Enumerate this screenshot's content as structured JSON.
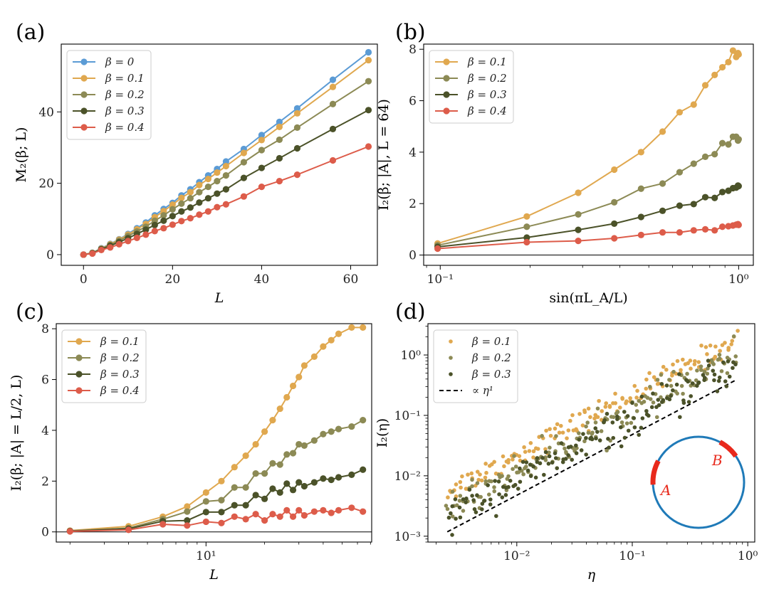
{
  "chart_data": [
    {
      "type": "line",
      "panel_label": "(a)",
      "xlabel": "L",
      "ylabel": "M₂(β; L)",
      "xscale": "linear",
      "yscale": "linear",
      "xlim": [
        -5,
        66
      ],
      "ylim": [
        -3,
        59
      ],
      "xticks": [
        0,
        20,
        40,
        60
      ],
      "xtick_labels": [
        "0",
        "20",
        "40",
        "60"
      ],
      "yticks": [
        0,
        20,
        40
      ],
      "ytick_labels": [
        "0",
        "20",
        "40"
      ],
      "legend_position": "top-left",
      "series": [
        {
          "name": "β = 0",
          "color": "#5b9bd5",
          "x": [
            0,
            2,
            4,
            6,
            8,
            10,
            12,
            14,
            16,
            18,
            20,
            22,
            24,
            26,
            28,
            30,
            32,
            36,
            40,
            44,
            48,
            56,
            64
          ],
          "y": [
            0,
            0.5,
            1.8,
            3.0,
            4.3,
            5.8,
            7.4,
            9.0,
            11.0,
            12.8,
            14.5,
            16.6,
            18.3,
            20.3,
            22.2,
            24.0,
            26.1,
            29.6,
            33.5,
            37.2,
            41.0,
            49.0,
            56.7
          ]
        },
        {
          "name": "β = 0.1",
          "color": "#e0a84f",
          "x": [
            0,
            2,
            4,
            6,
            8,
            10,
            12,
            14,
            16,
            18,
            20,
            22,
            24,
            26,
            28,
            30,
            32,
            36,
            40,
            44,
            48,
            56,
            64
          ],
          "y": [
            0,
            0.5,
            1.7,
            2.9,
            4.2,
            5.6,
            7.1,
            8.6,
            10.5,
            12.2,
            14.0,
            15.9,
            17.5,
            19.5,
            21.2,
            23.0,
            24.8,
            28.5,
            32.1,
            35.8,
            39.6,
            47.0,
            54.5
          ]
        },
        {
          "name": "β = 0.2",
          "color": "#8c8a55",
          "x": [
            0,
            2,
            4,
            6,
            8,
            10,
            12,
            14,
            16,
            18,
            20,
            22,
            24,
            26,
            28,
            30,
            32,
            36,
            40,
            44,
            48,
            56,
            64
          ],
          "y": [
            0,
            0.5,
            1.6,
            2.7,
            3.9,
            5.2,
            6.5,
            7.8,
            9.5,
            11.0,
            12.7,
            14.3,
            15.8,
            17.5,
            19.0,
            20.6,
            22.2,
            25.9,
            29.3,
            32.2,
            35.6,
            42.2,
            48.6
          ]
        },
        {
          "name": "β = 0.3",
          "color": "#4b5229",
          "x": [
            0,
            2,
            4,
            6,
            8,
            10,
            12,
            14,
            16,
            18,
            20,
            22,
            24,
            26,
            28,
            30,
            32,
            36,
            40,
            44,
            48,
            56,
            64
          ],
          "y": [
            0,
            0.4,
            1.5,
            2.5,
            3.5,
            4.6,
            5.8,
            7.0,
            8.3,
            9.5,
            10.8,
            12.1,
            13.2,
            14.6,
            15.8,
            17.1,
            18.3,
            21.5,
            24.3,
            27.0,
            29.8,
            35.2,
            40.5
          ]
        },
        {
          "name": "β = 0.4",
          "color": "#dd5c4a",
          "x": [
            0,
            2,
            4,
            6,
            8,
            10,
            12,
            14,
            16,
            18,
            20,
            22,
            24,
            26,
            28,
            30,
            32,
            36,
            40,
            44,
            48,
            56,
            64
          ],
          "y": [
            0,
            0.3,
            1.3,
            2.0,
            2.9,
            3.8,
            4.7,
            5.6,
            6.6,
            7.4,
            8.4,
            9.4,
            10.2,
            11.2,
            12.1,
            13.3,
            14.1,
            16.3,
            19.0,
            20.6,
            22.4,
            26.4,
            30.3
          ]
        }
      ]
    },
    {
      "type": "line",
      "panel_label": "(b)",
      "xlabel": "sin(πL_A/L)",
      "ylabel": "I₂(β; |A|, L = 64)",
      "xscale": "log",
      "yscale": "linear",
      "xlim": [
        0.088,
        1.12
      ],
      "ylim": [
        -0.4,
        8.2
      ],
      "xticks": [
        0.1,
        1
      ],
      "xtick_labels": [
        "10⁻¹",
        "10⁰"
      ],
      "yticks": [
        0,
        2,
        4,
        6,
        8
      ],
      "ytick_labels": [
        "0",
        "2",
        "4",
        "6",
        "8"
      ],
      "hline": 0,
      "legend_position": "top-left",
      "series": [
        {
          "name": "β = 0.1",
          "color": "#e0a84f",
          "x": [
            0.098,
            0.195,
            0.29,
            0.383,
            0.471,
            0.556,
            0.634,
            0.707,
            0.773,
            0.831,
            0.882,
            0.924,
            0.957,
            0.981,
            0.995,
            1.0
          ],
          "y": [
            0.45,
            1.5,
            2.42,
            3.32,
            4.0,
            4.8,
            5.55,
            5.85,
            6.6,
            7.0,
            7.3,
            7.5,
            7.95,
            7.7,
            7.85,
            7.8
          ]
        },
        {
          "name": "β = 0.2",
          "color": "#8c8a55",
          "x": [
            0.098,
            0.195,
            0.29,
            0.383,
            0.471,
            0.556,
            0.634,
            0.707,
            0.773,
            0.831,
            0.882,
            0.924,
            0.957,
            0.981,
            0.995,
            1.0
          ],
          "y": [
            0.38,
            1.1,
            1.58,
            2.05,
            2.58,
            2.78,
            3.22,
            3.55,
            3.82,
            3.92,
            4.35,
            4.3,
            4.6,
            4.6,
            4.45,
            4.5
          ]
        },
        {
          "name": "β = 0.3",
          "color": "#4b5229",
          "x": [
            0.098,
            0.195,
            0.29,
            0.383,
            0.471,
            0.556,
            0.634,
            0.707,
            0.773,
            0.831,
            0.882,
            0.924,
            0.957,
            0.981,
            0.995,
            1.0
          ],
          "y": [
            0.32,
            0.68,
            0.98,
            1.22,
            1.48,
            1.72,
            1.92,
            1.98,
            2.25,
            2.22,
            2.45,
            2.5,
            2.6,
            2.62,
            2.7,
            2.68
          ]
        },
        {
          "name": "β = 0.4",
          "color": "#dd5c4a",
          "x": [
            0.098,
            0.195,
            0.29,
            0.383,
            0.471,
            0.556,
            0.634,
            0.707,
            0.773,
            0.831,
            0.882,
            0.924,
            0.957,
            0.981,
            0.995,
            1.0
          ],
          "y": [
            0.25,
            0.5,
            0.55,
            0.65,
            0.78,
            0.88,
            0.88,
            0.96,
            1.0,
            0.96,
            1.1,
            1.12,
            1.15,
            1.18,
            1.2,
            1.17
          ]
        }
      ]
    },
    {
      "type": "line",
      "panel_label": "(c)",
      "xlabel": "L",
      "ylabel": "I₂(β; |A| = L/2, L)",
      "xscale": "log",
      "yscale": "linear",
      "xlim": [
        1.7,
        71
      ],
      "ylim": [
        -0.4,
        8.2
      ],
      "xticks": [
        10
      ],
      "xtick_labels": [
        "10¹"
      ],
      "yticks": [
        0,
        2,
        4,
        6,
        8
      ],
      "ytick_labels": [
        "0",
        "2",
        "4",
        "6",
        "8"
      ],
      "hline": 0,
      "legend_position": "top-left",
      "series": [
        {
          "name": "β = 0.1",
          "color": "#e0a84f",
          "x": [
            2,
            4,
            6,
            8,
            10,
            12,
            14,
            16,
            18,
            20,
            22,
            24,
            26,
            28,
            30,
            32,
            36,
            40,
            44,
            48,
            56,
            64
          ],
          "y": [
            0.05,
            0.22,
            0.6,
            1.0,
            1.55,
            2.0,
            2.55,
            3.0,
            3.45,
            3.95,
            4.4,
            4.85,
            5.3,
            5.75,
            6.1,
            6.55,
            6.9,
            7.3,
            7.55,
            7.8,
            8.05,
            8.05
          ]
        },
        {
          "name": "β = 0.2",
          "color": "#8c8a55",
          "x": [
            2,
            4,
            6,
            8,
            10,
            12,
            14,
            16,
            18,
            20,
            22,
            24,
            26,
            28,
            30,
            32,
            36,
            40,
            44,
            48,
            56,
            64
          ],
          "y": [
            0.04,
            0.15,
            0.5,
            0.8,
            1.2,
            1.25,
            1.75,
            1.75,
            2.3,
            2.3,
            2.7,
            2.65,
            3.05,
            3.1,
            3.45,
            3.4,
            3.6,
            3.85,
            3.95,
            4.05,
            4.15,
            4.4
          ]
        },
        {
          "name": "β = 0.3",
          "color": "#4b5229",
          "x": [
            2,
            4,
            6,
            8,
            10,
            12,
            14,
            16,
            18,
            20,
            22,
            24,
            26,
            28,
            30,
            32,
            36,
            40,
            44,
            48,
            56,
            64
          ],
          "y": [
            0.03,
            0.12,
            0.42,
            0.45,
            0.78,
            0.78,
            1.05,
            1.05,
            1.45,
            1.3,
            1.7,
            1.55,
            1.9,
            1.65,
            1.95,
            1.8,
            1.95,
            2.1,
            2.05,
            2.15,
            2.25,
            2.45
          ]
        },
        {
          "name": "β = 0.4",
          "color": "#dd5c4a",
          "x": [
            2,
            4,
            6,
            8,
            10,
            12,
            14,
            16,
            18,
            20,
            22,
            24,
            26,
            28,
            30,
            32,
            36,
            40,
            44,
            48,
            56,
            64
          ],
          "y": [
            0.02,
            0.08,
            0.3,
            0.25,
            0.4,
            0.35,
            0.6,
            0.5,
            0.7,
            0.45,
            0.7,
            0.6,
            0.85,
            0.6,
            0.85,
            0.65,
            0.8,
            0.85,
            0.75,
            0.85,
            0.95,
            0.8
          ]
        }
      ]
    },
    {
      "type": "scatter",
      "panel_label": "(d)",
      "xlabel": "η",
      "ylabel": "I₂(η)",
      "xscale": "log",
      "yscale": "log",
      "xlim": [
        0.0017,
        1.15
      ],
      "ylim": [
        0.0008,
        3.3
      ],
      "xticks": [
        0.01,
        0.1,
        1
      ],
      "xtick_labels": [
        "10⁻²",
        "10⁻¹",
        "10⁰"
      ],
      "yticks": [
        0.001,
        0.01,
        0.1,
        1
      ],
      "ytick_labels": [
        "10⁻³",
        "10⁻²",
        "10⁻¹",
        "10⁰"
      ],
      "legend_position": "top-left",
      "series": [
        {
          "name": "β = 0.1",
          "color": "#e0a84f",
          "coef": 2.2,
          "eta_range": [
            0.0025,
            0.8
          ],
          "noise": 0.22
        },
        {
          "name": "β = 0.2",
          "color": "#8c8a55",
          "coef": 1.2,
          "eta_range": [
            0.0025,
            0.8
          ],
          "noise": 0.28
        },
        {
          "name": "β = 0.3",
          "color": "#4b5229",
          "coef": 0.85,
          "eta_range": [
            0.0025,
            0.8
          ],
          "noise": 0.32
        }
      ],
      "reference_line": {
        "name": "∝ η¹",
        "x": [
          0.0025,
          0.78
        ],
        "y": [
          0.00118,
          0.38
        ],
        "style": "dashed",
        "color": "#000000"
      },
      "inset": {
        "labels": [
          "A",
          "B"
        ],
        "circle_color": "#1f7ab8",
        "arc_color": "#e8291c"
      }
    }
  ]
}
